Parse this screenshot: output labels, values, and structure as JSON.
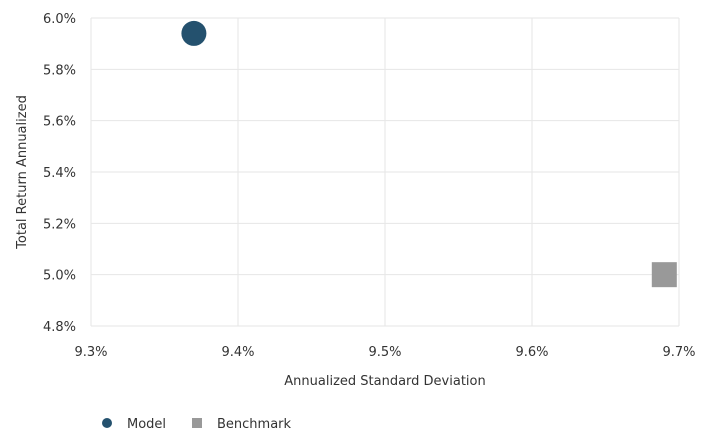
{
  "chart_data": {
    "type": "scatter",
    "xlabel": "Annualized Standard Deviation",
    "ylabel": "Total Return Annualized",
    "xlim": [
      9.3,
      9.7
    ],
    "ylim": [
      4.8,
      6.0
    ],
    "x_ticks": [
      "9.3%",
      "9.4%",
      "9.5%",
      "9.6%",
      "9.7%"
    ],
    "y_ticks": [
      "6.0%",
      "5.8%",
      "5.6%",
      "5.4%",
      "5.2%",
      "5.0%",
      "4.8%"
    ],
    "grid": true,
    "legend_position": "bottom-left",
    "series": [
      {
        "name": "Model",
        "x": 9.37,
        "y": 5.94,
        "marker": "circle",
        "color": "#24516e"
      },
      {
        "name": "Benchmark",
        "x": 9.69,
        "y": 5.0,
        "marker": "square",
        "color": "#999999"
      }
    ]
  }
}
